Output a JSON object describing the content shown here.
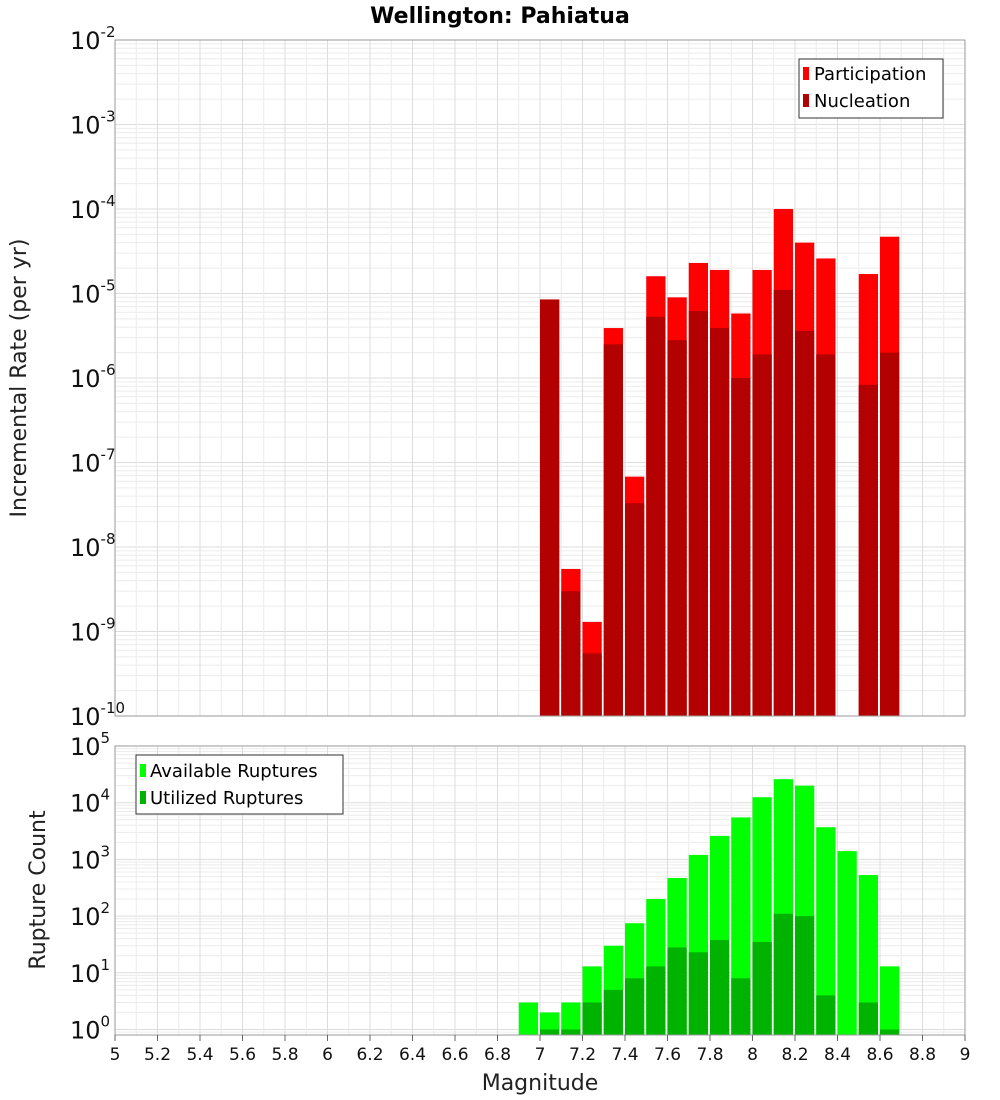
{
  "chart_data": [
    {
      "type": "bar",
      "title": "Wellington: Pahiatua",
      "xlabel": "Magnitude",
      "ylabel": "Incremental Rate (per yr)",
      "yscale": "log",
      "ylim": [
        1e-10,
        0.01
      ],
      "xlim": [
        5,
        9
      ],
      "grid": true,
      "legend": "top-right",
      "bin_width": 0.1,
      "x": [
        7.05,
        7.15,
        7.25,
        7.35,
        7.45,
        7.55,
        7.65,
        7.75,
        7.85,
        7.95,
        8.05,
        8.15,
        8.25,
        8.35,
        8.45,
        8.55,
        8.65
      ],
      "series": [
        {
          "name": "Participation",
          "color": "#ff0000",
          "values": [
            8.5e-06,
            5.5e-09,
            1.3e-09,
            3.9e-06,
            6.8e-08,
            1.6e-05,
            9e-06,
            2.3e-05,
            1.9e-05,
            5.8e-06,
            1.9e-05,
            0.0001,
            4e-05,
            2.6e-05,
            null,
            1.7e-05,
            4.7e-05
          ]
        },
        {
          "name": "Nucleation",
          "color": "#b30000",
          "values": [
            8.5e-06,
            3e-09,
            5.5e-10,
            2.5e-06,
            3.3e-08,
            5.3e-06,
            2.8e-06,
            6.2e-06,
            3.9e-06,
            1e-06,
            1.9e-06,
            1.1e-05,
            3.6e-06,
            1.9e-06,
            null,
            8.3e-07,
            2e-06
          ]
        }
      ]
    },
    {
      "type": "bar",
      "title": "",
      "xlabel": "Magnitude",
      "ylabel": "Rupture Count",
      "yscale": "log",
      "ylim": [
        0.8,
        100000.0
      ],
      "xlim": [
        5,
        9
      ],
      "grid": true,
      "legend": "top-left",
      "bin_width": 0.1,
      "x": [
        6.95,
        7.05,
        7.15,
        7.25,
        7.35,
        7.45,
        7.55,
        7.65,
        7.75,
        7.85,
        7.95,
        8.05,
        8.15,
        8.25,
        8.35,
        8.45,
        8.55,
        8.65
      ],
      "series": [
        {
          "name": "Available Ruptures",
          "color": "#00ff00",
          "values": [
            3,
            2,
            3,
            13,
            30,
            75,
            200,
            470,
            1200,
            2600,
            5500,
            12500,
            26000,
            20000,
            3700,
            1400,
            530,
            13
          ]
        },
        {
          "name": "Utilized Ruptures",
          "color": "#00b300",
          "values": [
            null,
            1,
            1,
            3,
            5,
            8,
            13,
            28,
            23,
            38,
            8,
            35,
            110,
            100,
            4,
            null,
            3,
            1
          ]
        }
      ]
    }
  ],
  "x_ticks": [
    "5",
    "5.2",
    "5.4",
    "5.6",
    "5.8",
    "6",
    "6.2",
    "6.4",
    "6.6",
    "6.8",
    "7",
    "7.2",
    "7.4",
    "7.6",
    "7.8",
    "8",
    "8.2",
    "8.4",
    "8.6",
    "8.8",
    "9"
  ],
  "top_y_ticks": [
    {
      "base": "10",
      "exp": "-2"
    },
    {
      "base": "10",
      "exp": "-3"
    },
    {
      "base": "10",
      "exp": "-4"
    },
    {
      "base": "10",
      "exp": "-5"
    },
    {
      "base": "10",
      "exp": "-6"
    },
    {
      "base": "10",
      "exp": "-7"
    },
    {
      "base": "10",
      "exp": "-8"
    },
    {
      "base": "10",
      "exp": "-9"
    },
    {
      "base": "10",
      "exp": "-10"
    }
  ],
  "bottom_y_ticks": [
    {
      "base": "10",
      "exp": "5"
    },
    {
      "base": "10",
      "exp": "4"
    },
    {
      "base": "10",
      "exp": "3"
    },
    {
      "base": "10",
      "exp": "2"
    },
    {
      "base": "10",
      "exp": "1"
    },
    {
      "base": "10",
      "exp": "0"
    }
  ]
}
